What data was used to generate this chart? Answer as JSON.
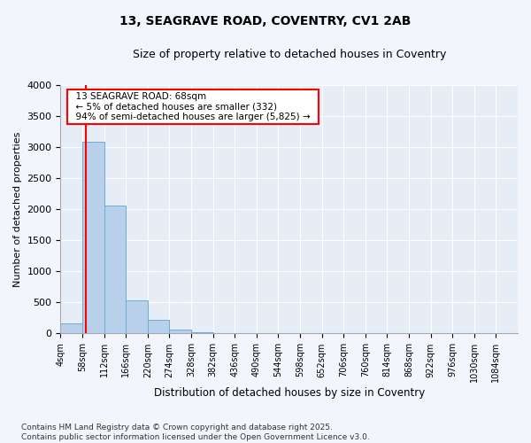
{
  "title1": "13, SEAGRAVE ROAD, COVENTRY, CV1 2AB",
  "title2": "Size of property relative to detached houses in Coventry",
  "xlabel": "Distribution of detached houses by size in Coventry",
  "ylabel": "Number of detached properties",
  "bin_labels": [
    "4sqm",
    "58sqm",
    "112sqm",
    "166sqm",
    "220sqm",
    "274sqm",
    "328sqm",
    "382sqm",
    "436sqm",
    "490sqm",
    "544sqm",
    "598sqm",
    "652sqm",
    "706sqm",
    "760sqm",
    "814sqm",
    "868sqm",
    "922sqm",
    "976sqm",
    "1030sqm",
    "1084sqm"
  ],
  "bar_heights": [
    170,
    3080,
    2060,
    540,
    220,
    65,
    25,
    0,
    0,
    0,
    0,
    0,
    0,
    0,
    0,
    0,
    0,
    0,
    0,
    0,
    0
  ],
  "bar_color": "#b8d0ea",
  "bar_edge_color": "#6aaed6",
  "property_line_x": 1.18,
  "ylim": [
    0,
    4000
  ],
  "yticks": [
    0,
    500,
    1000,
    1500,
    2000,
    2500,
    3000,
    3500,
    4000
  ],
  "annotation_title": "13 SEAGRAVE ROAD: 68sqm",
  "annotation_line1": "← 5% of detached houses are smaller (332)",
  "annotation_line2": "94% of semi-detached houses are larger (5,825) →",
  "footer1": "Contains HM Land Registry data © Crown copyright and database right 2025.",
  "footer2": "Contains public sector information licensed under the Open Government Licence v3.0.",
  "background_color": "#f2f5fb",
  "plot_bg_color": "#e6edf7"
}
